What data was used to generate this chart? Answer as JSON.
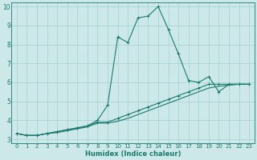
{
  "title": "",
  "xlabel": "Humidex (Indice chaleur)",
  "background_color": "#cce8e8",
  "grid_color": "#aad4d4",
  "line_color": "#1a7a6e",
  "xlim": [
    -0.5,
    23.5
  ],
  "ylim": [
    2.8,
    10.2
  ],
  "xticks": [
    0,
    1,
    2,
    3,
    4,
    5,
    6,
    7,
    8,
    9,
    10,
    11,
    12,
    13,
    14,
    15,
    16,
    17,
    18,
    19,
    20,
    21,
    22,
    23
  ],
  "yticks": [
    3,
    4,
    5,
    6,
    7,
    8,
    9,
    10
  ],
  "series1_x": [
    0,
    1,
    2,
    3,
    4,
    5,
    6,
    7,
    8,
    9,
    10,
    11,
    12,
    13,
    14,
    15,
    16,
    17,
    18,
    19,
    20,
    21,
    22,
    23
  ],
  "series1_y": [
    3.3,
    3.2,
    3.2,
    3.3,
    3.4,
    3.5,
    3.6,
    3.7,
    4.0,
    4.8,
    8.4,
    8.1,
    9.4,
    9.5,
    10.0,
    8.8,
    7.5,
    6.1,
    6.0,
    6.3,
    5.5,
    5.9,
    5.9,
    5.9
  ],
  "series2_x": [
    0,
    1,
    2,
    3,
    4,
    5,
    6,
    7,
    8,
    9,
    10,
    11,
    12,
    13,
    14,
    15,
    16,
    17,
    18,
    19,
    20,
    21,
    22,
    23
  ],
  "series2_y": [
    3.3,
    3.2,
    3.2,
    3.3,
    3.4,
    3.5,
    3.6,
    3.7,
    3.9,
    3.9,
    4.1,
    4.3,
    4.5,
    4.7,
    4.9,
    5.1,
    5.3,
    5.5,
    5.7,
    5.9,
    5.9,
    5.9,
    5.9,
    5.9
  ],
  "series3_x": [
    0,
    1,
    2,
    3,
    4,
    5,
    6,
    7,
    8,
    9,
    10,
    11,
    12,
    13,
    14,
    15,
    16,
    17,
    18,
    19,
    20,
    21,
    22,
    23
  ],
  "series3_y": [
    3.3,
    3.2,
    3.2,
    3.3,
    3.35,
    3.45,
    3.55,
    3.65,
    3.85,
    3.85,
    3.95,
    4.1,
    4.3,
    4.5,
    4.7,
    4.9,
    5.1,
    5.3,
    5.5,
    5.7,
    5.8,
    5.85,
    5.9,
    5.9
  ],
  "xlabel_fontsize": 6.0,
  "tick_fontsize": 5.0
}
